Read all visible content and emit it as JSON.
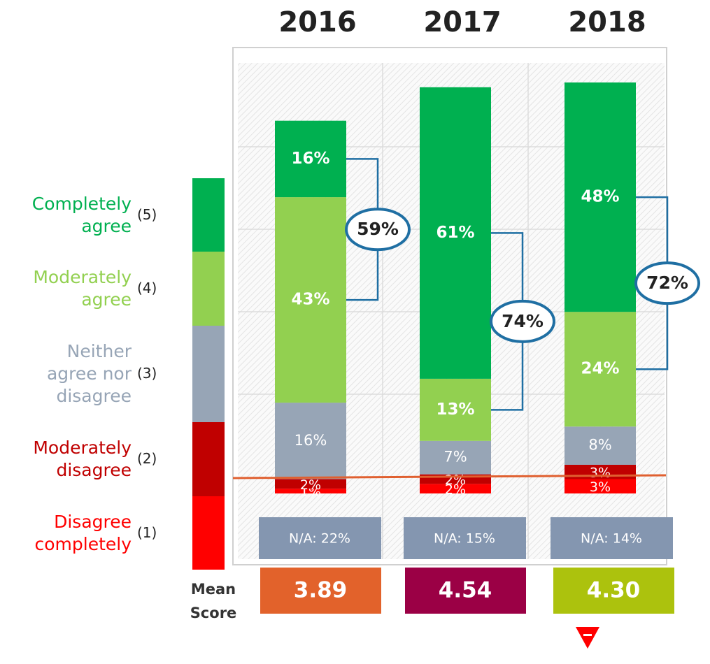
{
  "chart_data": {
    "type": "stacked_bar",
    "categories": [
      "2016",
      "2017",
      "2018"
    ],
    "series": [
      {
        "name": "Disagree completely",
        "code": "(1)",
        "color": "#ff0000",
        "values": [
          1,
          2,
          3
        ],
        "value_labels": [
          "1%",
          "2%",
          "3%"
        ]
      },
      {
        "name": "Moderately disagree",
        "code": "(2)",
        "color": "#c00000",
        "values": [
          2,
          2,
          3
        ],
        "value_labels": [
          "2%",
          "2%",
          "3%"
        ]
      },
      {
        "name": "Neither agree nor disagree",
        "code": "(3)",
        "color": "#97a5b6",
        "values": [
          16,
          7,
          8
        ],
        "value_labels": [
          "16%",
          "7%",
          "8%"
        ]
      },
      {
        "name": "Moderately agree",
        "code": "(4)",
        "color": "#92d050",
        "values": [
          43,
          13,
          24
        ],
        "value_labels": [
          "43%",
          "13%",
          "24%"
        ]
      },
      {
        "name": "Completely agree",
        "code": "(5)",
        "color": "#00b050",
        "values": [
          16,
          61,
          48
        ],
        "value_labels": [
          "16%",
          "61%",
          "48%"
        ]
      }
    ],
    "top_box": {
      "values": [
        59,
        74,
        72
      ],
      "value_labels": [
        "59%",
        "74%",
        "72%"
      ],
      "color": "#1f6fa3"
    },
    "not_applicable": {
      "values": [
        22,
        15,
        14
      ],
      "value_labels": [
        "N/A: 22%",
        "N/A: 15%",
        "N/A: 14%"
      ],
      "color": "#8496b0"
    },
    "mean_score": {
      "label": "Mean Score",
      "values": [
        3.89,
        4.54,
        4.3
      ],
      "value_labels": [
        "3.89",
        "4.54",
        "4.30"
      ],
      "colors": [
        "#e2622b",
        "#9b0045",
        "#acc20d"
      ]
    }
  }
}
